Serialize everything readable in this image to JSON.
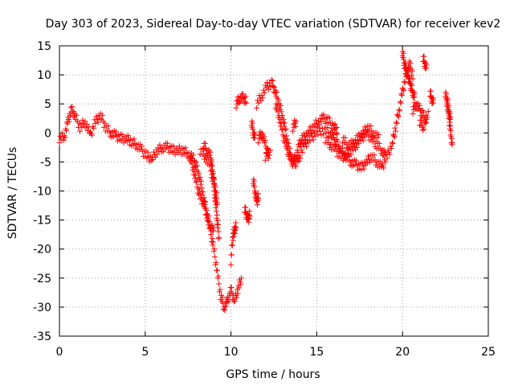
{
  "chart_data": {
    "type": "scatter",
    "title": "Day 303 of 2023, Sidereal Day-to-day VTEC variation (SDTVAR) for receiver kev2",
    "xlabel": "GPS time / hours",
    "ylabel": "SDTVAR / TECUs",
    "xlim": [
      0,
      25
    ],
    "ylim": [
      -35,
      15
    ],
    "xticks": [
      0,
      5,
      10,
      15,
      20,
      25
    ],
    "yticks": [
      -35,
      -30,
      -25,
      -20,
      -15,
      -10,
      -5,
      0,
      5,
      10,
      15
    ],
    "grid": true,
    "marker": "plus",
    "color": "#ff0000",
    "series": [
      {
        "name": "main",
        "x": [
          0.0,
          0.3,
          0.5,
          0.7,
          0.9,
          1.2,
          1.5,
          1.8,
          2.1,
          2.4,
          2.7,
          3.0,
          3.3,
          3.6,
          3.9,
          4.2,
          4.5,
          4.8,
          5.1,
          5.4,
          5.7,
          6.0,
          6.3,
          6.6,
          6.9,
          7.2,
          7.5,
          7.8,
          8.0,
          8.2,
          8.4,
          8.6,
          8.8,
          9.0,
          9.2,
          9.4,
          9.6,
          9.8,
          10.0,
          10.2,
          10.4,
          10.6
        ],
        "y": [
          -1,
          -0.5,
          2,
          4,
          3,
          1,
          2,
          -0.5,
          2,
          3,
          1,
          0,
          -0.5,
          -1,
          -1,
          -1.5,
          -2,
          -3,
          -4,
          -4.5,
          -3,
          -2.5,
          -2.5,
          -3,
          -3,
          -3,
          -3.5,
          -4.5,
          -6,
          -8,
          -11,
          -14,
          -17,
          -20,
          -24,
          -28,
          -30,
          -29,
          -27,
          -29,
          -27,
          -25
        ]
      },
      {
        "name": "branch-a",
        "x": [
          7.6,
          7.8,
          8.0,
          8.2,
          8.4,
          8.6,
          8.8,
          9.0
        ],
        "y": [
          -4,
          -6,
          -9,
          -11,
          -12,
          -14,
          -16,
          -17
        ]
      },
      {
        "name": "branch-b",
        "x": [
          8.2,
          8.5,
          8.8,
          9.0,
          9.1,
          9.2,
          9.3
        ],
        "y": [
          -3,
          -4,
          -6,
          -9,
          -12,
          -15,
          -18
        ]
      },
      {
        "name": "branch-c",
        "x": [
          8.4,
          8.6,
          8.8,
          8.9,
          9.0,
          9.1,
          9.2
        ],
        "y": [
          -2,
          -3,
          -4,
          -6,
          -8,
          -10,
          -12
        ]
      },
      {
        "name": "scatter-a",
        "x": [
          10.0,
          10.1,
          10.2,
          10.3
        ],
        "y": [
          -22,
          -18,
          -17,
          -16
        ]
      },
      {
        "name": "scatter-b",
        "x": [
          10.8,
          10.9,
          11.0,
          11.1
        ],
        "y": [
          -13,
          -14,
          -15,
          -14
        ]
      },
      {
        "name": "scatter-c",
        "x": [
          11.3,
          11.4,
          11.5,
          11.6
        ],
        "y": [
          -8,
          -10,
          -12,
          -11
        ]
      },
      {
        "name": "segment-a",
        "x": [
          10.3,
          10.5,
          10.7,
          10.9
        ],
        "y": [
          5,
          6,
          6,
          5.5
        ]
      },
      {
        "name": "segment-b",
        "x": [
          11.2,
          11.3,
          11.4
        ],
        "y": [
          2,
          0,
          -1
        ]
      },
      {
        "name": "segment-c",
        "x": [
          11.5,
          11.8,
          12.1,
          12.4,
          12.6,
          12.8,
          13.0,
          13.2,
          13.4,
          13.6,
          13.8,
          14.0,
          14.3,
          14.6,
          15.0,
          15.4,
          15.8,
          16.0,
          16.2,
          16.4,
          16.7,
          17.0,
          17.3,
          17.6,
          17.9,
          18.2,
          18.5,
          18.8,
          19.1,
          19.4,
          19.6,
          19.8,
          20.0,
          20.2,
          20.4,
          20.6
        ],
        "y": [
          5,
          6.5,
          8,
          8.5,
          7,
          5,
          3,
          0,
          -3,
          -5,
          -5,
          -4,
          -2,
          -1,
          0,
          0.5,
          0,
          -1,
          -2,
          -3,
          -4,
          -5,
          -5.5,
          -6,
          -5,
          -4,
          -5,
          -6,
          -4,
          -2,
          1,
          4,
          7,
          10,
          12,
          10
        ]
      },
      {
        "name": "segment-d",
        "x": [
          12.6,
          12.8,
          13.0,
          13.2,
          13.4,
          13.6,
          13.8,
          14.0,
          14.2,
          14.5,
          14.8,
          15.1,
          15.4,
          15.7,
          16.0,
          16.2
        ],
        "y": [
          5,
          3,
          0,
          -2,
          -4,
          -5,
          -4,
          -2,
          -1,
          0,
          1,
          2,
          2.5,
          2,
          1,
          0.5
        ]
      },
      {
        "name": "segment-e",
        "x": [
          11.6,
          11.8,
          12.0,
          12.2
        ],
        "y": [
          -1,
          0,
          -2,
          -4
        ]
      },
      {
        "name": "segment-f",
        "x": [
          15.5,
          15.8,
          16.1,
          16.4,
          16.7,
          17.0,
          17.3,
          17.6,
          17.9,
          18.2,
          18.5,
          18.8,
          19.0
        ],
        "y": [
          -1,
          -2,
          -3,
          -4,
          -4,
          -3,
          -2,
          -1,
          0,
          -1,
          -2,
          -3,
          -4
        ]
      },
      {
        "name": "segment-g",
        "x": [
          16.5,
          16.8,
          17.1,
          17.4,
          17.7,
          18.0,
          18.3,
          18.6
        ],
        "y": [
          -1,
          -2,
          -2,
          -1,
          0,
          1,
          0,
          -1
        ]
      },
      {
        "name": "late-a",
        "x": [
          20.0,
          20.1,
          20.2,
          20.3,
          20.4,
          20.5,
          20.6,
          20.7
        ],
        "y": [
          14,
          12,
          11,
          10,
          9,
          8,
          7,
          6
        ]
      },
      {
        "name": "late-b",
        "x": [
          20.6,
          20.8,
          21.0,
          21.2,
          21.4
        ],
        "y": [
          4,
          5,
          4,
          3,
          2
        ]
      },
      {
        "name": "late-c",
        "x": [
          21.2,
          21.3,
          21.4
        ],
        "y": [
          13,
          12,
          11
        ]
      },
      {
        "name": "late-d",
        "x": [
          21.6,
          21.7,
          21.8
        ],
        "y": [
          7,
          6,
          5
        ]
      },
      {
        "name": "late-e",
        "x": [
          22.5,
          22.6,
          22.7,
          22.8,
          22.9
        ],
        "y": [
          7,
          5,
          3,
          0,
          -2
        ]
      },
      {
        "name": "late-f",
        "x": [
          22.6,
          22.7,
          22.8
        ],
        "y": [
          6,
          4,
          2
        ]
      },
      {
        "name": "late-g",
        "x": [
          21.0,
          21.2,
          21.5
        ],
        "y": [
          2,
          1,
          3
        ]
      },
      {
        "name": "edge-a",
        "x": [
          12.0,
          12.3
        ],
        "y": [
          -4,
          -3
        ]
      },
      {
        "name": "edge-b",
        "x": [
          13.6,
          13.8
        ],
        "y": [
          1,
          2
        ]
      }
    ]
  }
}
